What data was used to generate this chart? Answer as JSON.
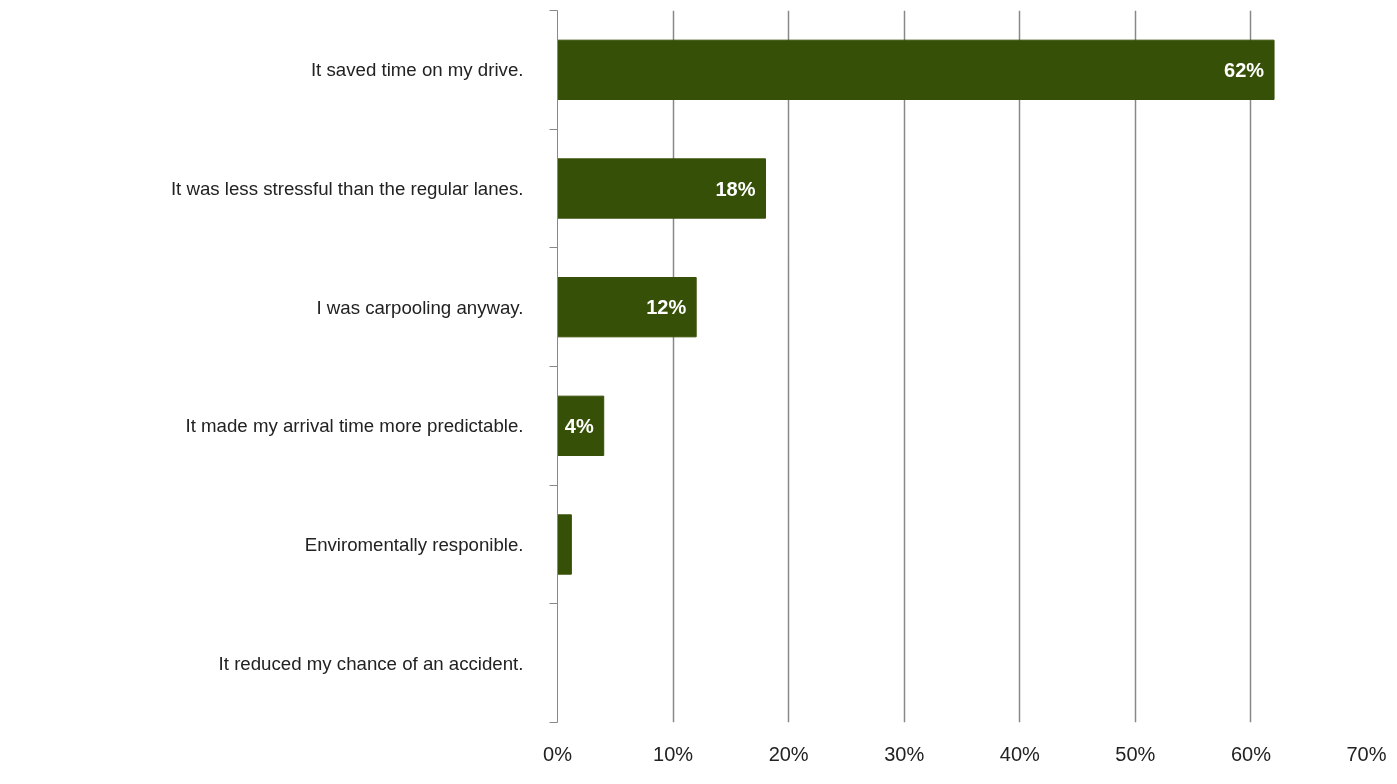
{
  "chart_data": {
    "type": "bar",
    "orientation": "horizontal",
    "categories": [
      "It saved time on my drive.",
      "It was less stressful than the regular lanes.",
      "I was carpooling anyway.",
      "It made my arrival time more predictable.",
      "Enviromentally responible.",
      "It reduced my chance of an accident."
    ],
    "values": [
      62,
      18,
      12,
      4,
      1.2,
      0
    ],
    "value_labels": [
      "62%",
      "18%",
      "12%",
      "4%",
      null,
      null
    ],
    "color": "#375007",
    "xlim": [
      0,
      70
    ],
    "xticks": [
      {
        "value": 0,
        "label": "0%"
      },
      {
        "value": 10,
        "label": "10%"
      },
      {
        "value": 20,
        "label": "20%"
      },
      {
        "value": 30,
        "label": "30%"
      },
      {
        "value": 40,
        "label": "40%"
      },
      {
        "value": 50,
        "label": "50%"
      },
      {
        "value": 60,
        "label": "60%"
      },
      {
        "value": 70,
        "label": "70%"
      }
    ],
    "grid": "x"
  }
}
